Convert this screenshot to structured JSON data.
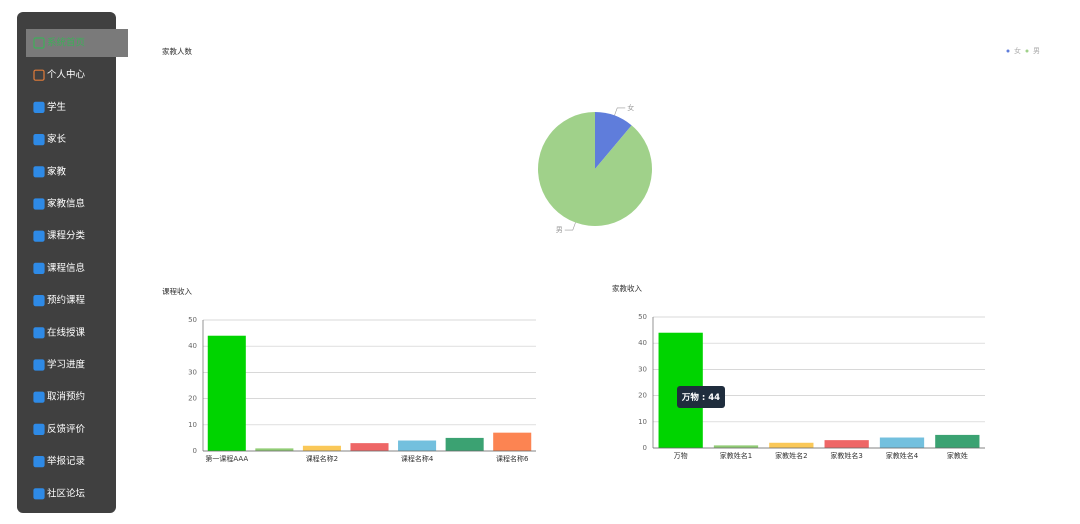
{
  "sidebar": {
    "items": [
      "系统首页",
      "个人中心",
      "学生",
      "家长",
      "家教",
      "家教信息",
      "课程分类",
      "课程信息",
      "预约课程",
      "在线授课",
      "学习进度",
      "取消预约",
      "反馈评价",
      "举报记录",
      "社区论坛"
    ]
  },
  "chart_data": [
    {
      "type": "pie",
      "title": "家教人数",
      "categories": [
        "女",
        "男"
      ],
      "values": [
        1,
        8
      ],
      "colors": [
        "#5f7ddb",
        "#a0d18a"
      ],
      "legend": "top-right"
    },
    {
      "type": "bar",
      "title": "课程收入",
      "categories": [
        "第一课程AAA",
        null,
        "课程名称2",
        null,
        "课程名称4",
        null,
        "课程名称6"
      ],
      "values": [
        44,
        1,
        2,
        3,
        4,
        5,
        7
      ],
      "colors": [
        "#00d400",
        "#91cc75",
        "#fac858",
        "#ee6666",
        "#73c0de",
        "#3ba272",
        "#fc8452",
        "#9a60b4"
      ],
      "ylim": [
        0,
        50
      ],
      "yticks": [
        0,
        10,
        20,
        30,
        40,
        50
      ],
      "grid": true
    },
    {
      "type": "bar",
      "title": "家教收入",
      "categories": [
        "万物",
        "家教姓名1",
        "家教姓名2",
        "家教姓名3",
        "家教姓名4",
        "家教姓"
      ],
      "values": [
        44,
        1,
        2,
        3,
        4,
        5
      ],
      "colors": [
        "#00d400",
        "#91cc75",
        "#fac858",
        "#ee6666",
        "#73c0de",
        "#3ba272"
      ],
      "ylim": [
        0,
        50
      ],
      "yticks": [
        0,
        10,
        20,
        30,
        40,
        50
      ],
      "grid": true,
      "tooltip": "万物 : 44"
    }
  ]
}
